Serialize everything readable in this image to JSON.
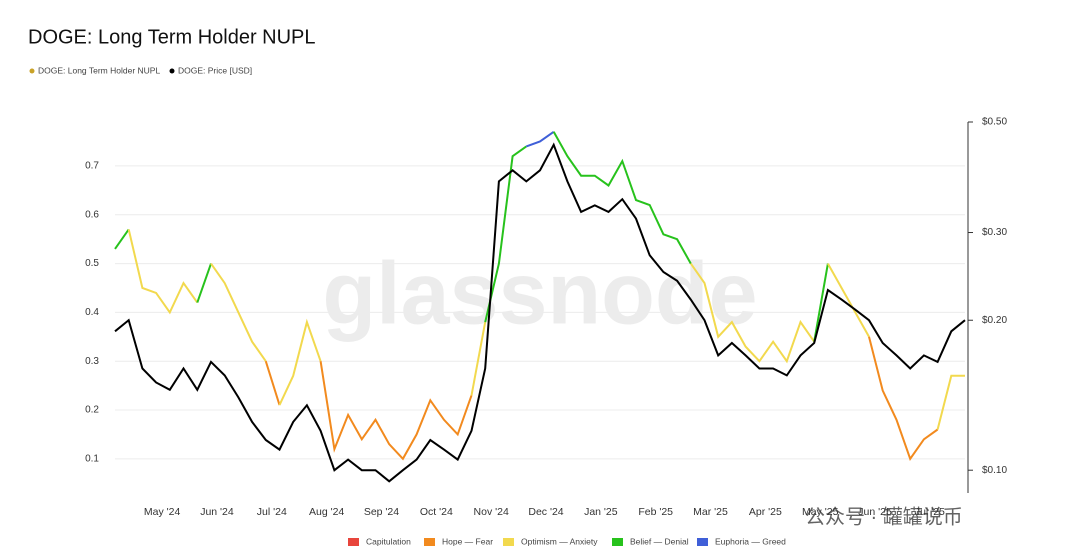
{
  "chart_data": {
    "type": "line",
    "title": "DOGE: Long Term Holder NUPL",
    "watermark": "glassnode",
    "watermark2": "公众号 · 罐罐说币",
    "categories": [
      null,
      null,
      null,
      "May '24",
      null,
      null,
      null,
      "Jun '24",
      null,
      null,
      null,
      "Jul '24",
      null,
      null,
      null,
      "Aug '24",
      null,
      null,
      null,
      "Sep '24",
      null,
      null,
      null,
      "Oct '24",
      null,
      null,
      null,
      "Nov '24",
      null,
      null,
      null,
      "Dec '24",
      null,
      null,
      null,
      "Jan '25",
      null,
      null,
      null,
      "Feb '25",
      null,
      null,
      null,
      "Mar '25",
      null,
      null,
      null,
      "Apr '25",
      null,
      null,
      null,
      "May '25",
      null,
      null,
      null,
      "Jun '25",
      null,
      null,
      null,
      "Jul '25",
      null,
      null,
      null
    ],
    "series": [
      {
        "name": "DOGE: Long Term Holder NUPL",
        "color": "#c9a227",
        "zone_thresholds": [
          0,
          0.25,
          0.5,
          0.75
        ],
        "values": [
          0.53,
          0.57,
          0.45,
          0.44,
          0.4,
          0.46,
          0.42,
          0.5,
          0.46,
          0.4,
          0.34,
          0.3,
          0.21,
          0.27,
          0.38,
          0.3,
          0.12,
          0.19,
          0.14,
          0.18,
          0.13,
          0.1,
          0.15,
          0.22,
          0.18,
          0.15,
          0.23,
          0.38,
          0.5,
          0.72,
          0.74,
          0.75,
          0.77,
          0.72,
          0.68,
          0.68,
          0.66,
          0.71,
          0.63,
          0.62,
          0.56,
          0.55,
          0.5,
          0.46,
          0.35,
          0.38,
          0.33,
          0.3,
          0.34,
          0.3,
          0.38,
          0.34,
          0.5,
          0.45,
          0.4,
          0.35,
          0.24,
          0.18,
          0.1,
          0.14,
          0.16,
          0.27,
          0.27
        ]
      },
      {
        "name": "DOGE: Price [USD]",
        "color": "#000000",
        "axis": "y2",
        "values": [
          0.19,
          0.2,
          0.16,
          0.15,
          0.145,
          0.16,
          0.145,
          0.165,
          0.155,
          0.14,
          0.125,
          0.115,
          0.11,
          0.125,
          0.135,
          0.12,
          0.1,
          0.105,
          0.1,
          0.1,
          0.095,
          0.1,
          0.105,
          0.115,
          0.11,
          0.105,
          0.12,
          0.16,
          0.38,
          0.4,
          0.38,
          0.4,
          0.45,
          0.38,
          0.33,
          0.34,
          0.33,
          0.35,
          0.32,
          0.27,
          0.25,
          0.24,
          0.22,
          0.2,
          0.17,
          0.18,
          0.17,
          0.16,
          0.16,
          0.155,
          0.17,
          0.18,
          0.23,
          0.22,
          0.21,
          0.2,
          0.18,
          0.17,
          0.16,
          0.17,
          0.165,
          0.19,
          0.2
        ]
      }
    ],
    "zones": [
      {
        "name": "Capitulation",
        "color": "#e8453c"
      },
      {
        "name": "Hope — Fear",
        "color": "#f28a1e"
      },
      {
        "name": "Optimism — Anxiety",
        "color": "#f2d94e"
      },
      {
        "name": "Belief — Denial",
        "color": "#27c21c"
      },
      {
        "name": "Euphoria — Greed",
        "color": "#3f5fd8"
      }
    ],
    "ylim": [
      0.03,
      0.79
    ],
    "yticks": [
      0.1,
      0.2,
      0.3,
      0.4,
      0.5,
      0.6,
      0.7
    ],
    "y2lim": [
      0.09,
      0.5
    ],
    "y2log": true,
    "y2ticks": [
      {
        "value": 0.1,
        "label": "$0.10"
      },
      {
        "value": 0.2,
        "label": "$0.20"
      },
      {
        "value": 0.3,
        "label": "$0.30"
      },
      {
        "value": 0.5,
        "label": "$0.50"
      }
    ],
    "grid": true
  }
}
